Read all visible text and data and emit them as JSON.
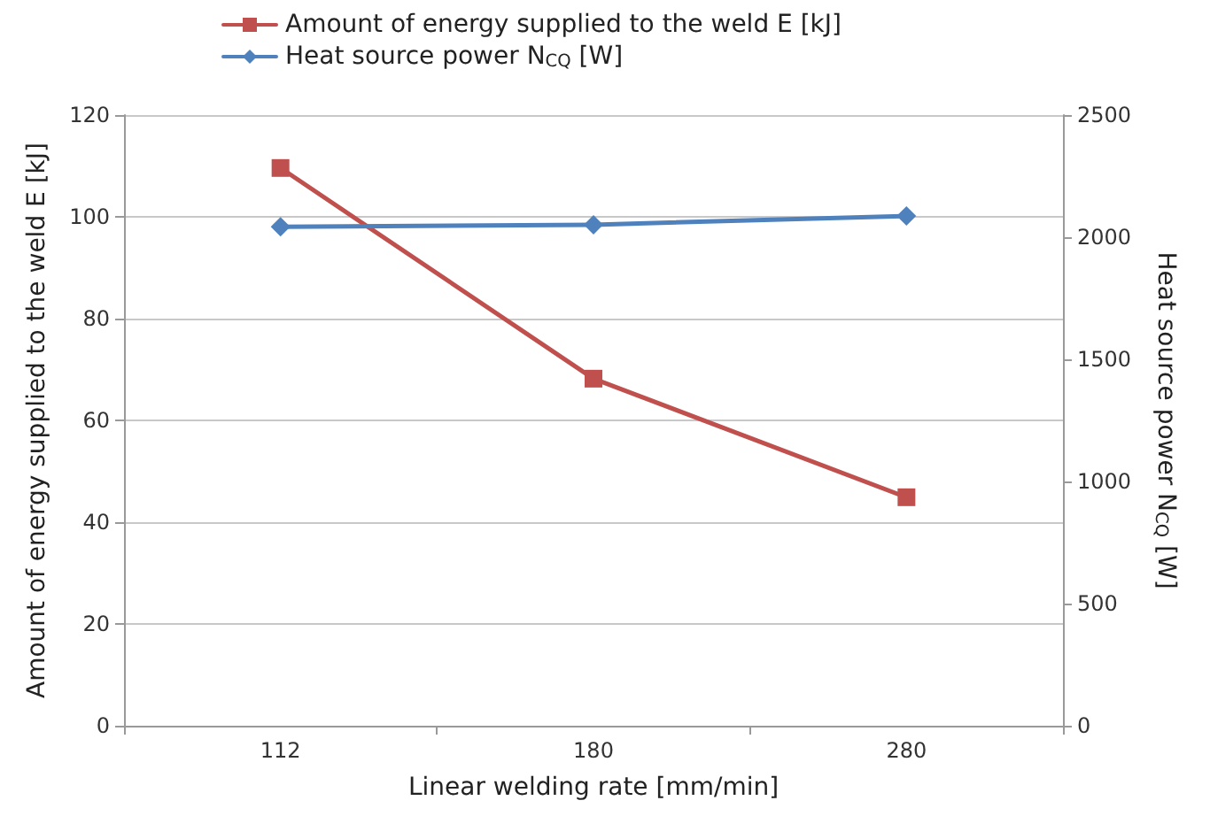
{
  "chart_data": {
    "type": "line",
    "xlabel": "Linear welding rate [mm/min]",
    "ylabel": "Amount of energy supplied to the weld E [kJ]",
    "y2label": "Heat source power N$_{CQ}$ [W]",
    "categories": [
      "112",
      "180",
      "280"
    ],
    "series": [
      {
        "name": "Amount of energy supplied to the weld E [kJ]",
        "color": "#c0504d",
        "marker": "square",
        "values": [
          109.6,
          68.2,
          44.9
        ]
      },
      {
        "name": "Heat source power N$_{CQ}$ [W]",
        "color": "#4f81bd",
        "marker": "diamond",
        "axis": "y2",
        "values": [
          2043,
          2051,
          2087
        ]
      }
    ],
    "ylim": [
      0,
      120
    ],
    "yticks": [
      0,
      20,
      40,
      60,
      80,
      100,
      120
    ],
    "y2lim": [
      0,
      2500
    ],
    "y2ticks": [
      0,
      500,
      1000,
      1500,
      2000,
      2500
    ],
    "grid": "y",
    "legend": "top left",
    "line_style": "solid"
  }
}
